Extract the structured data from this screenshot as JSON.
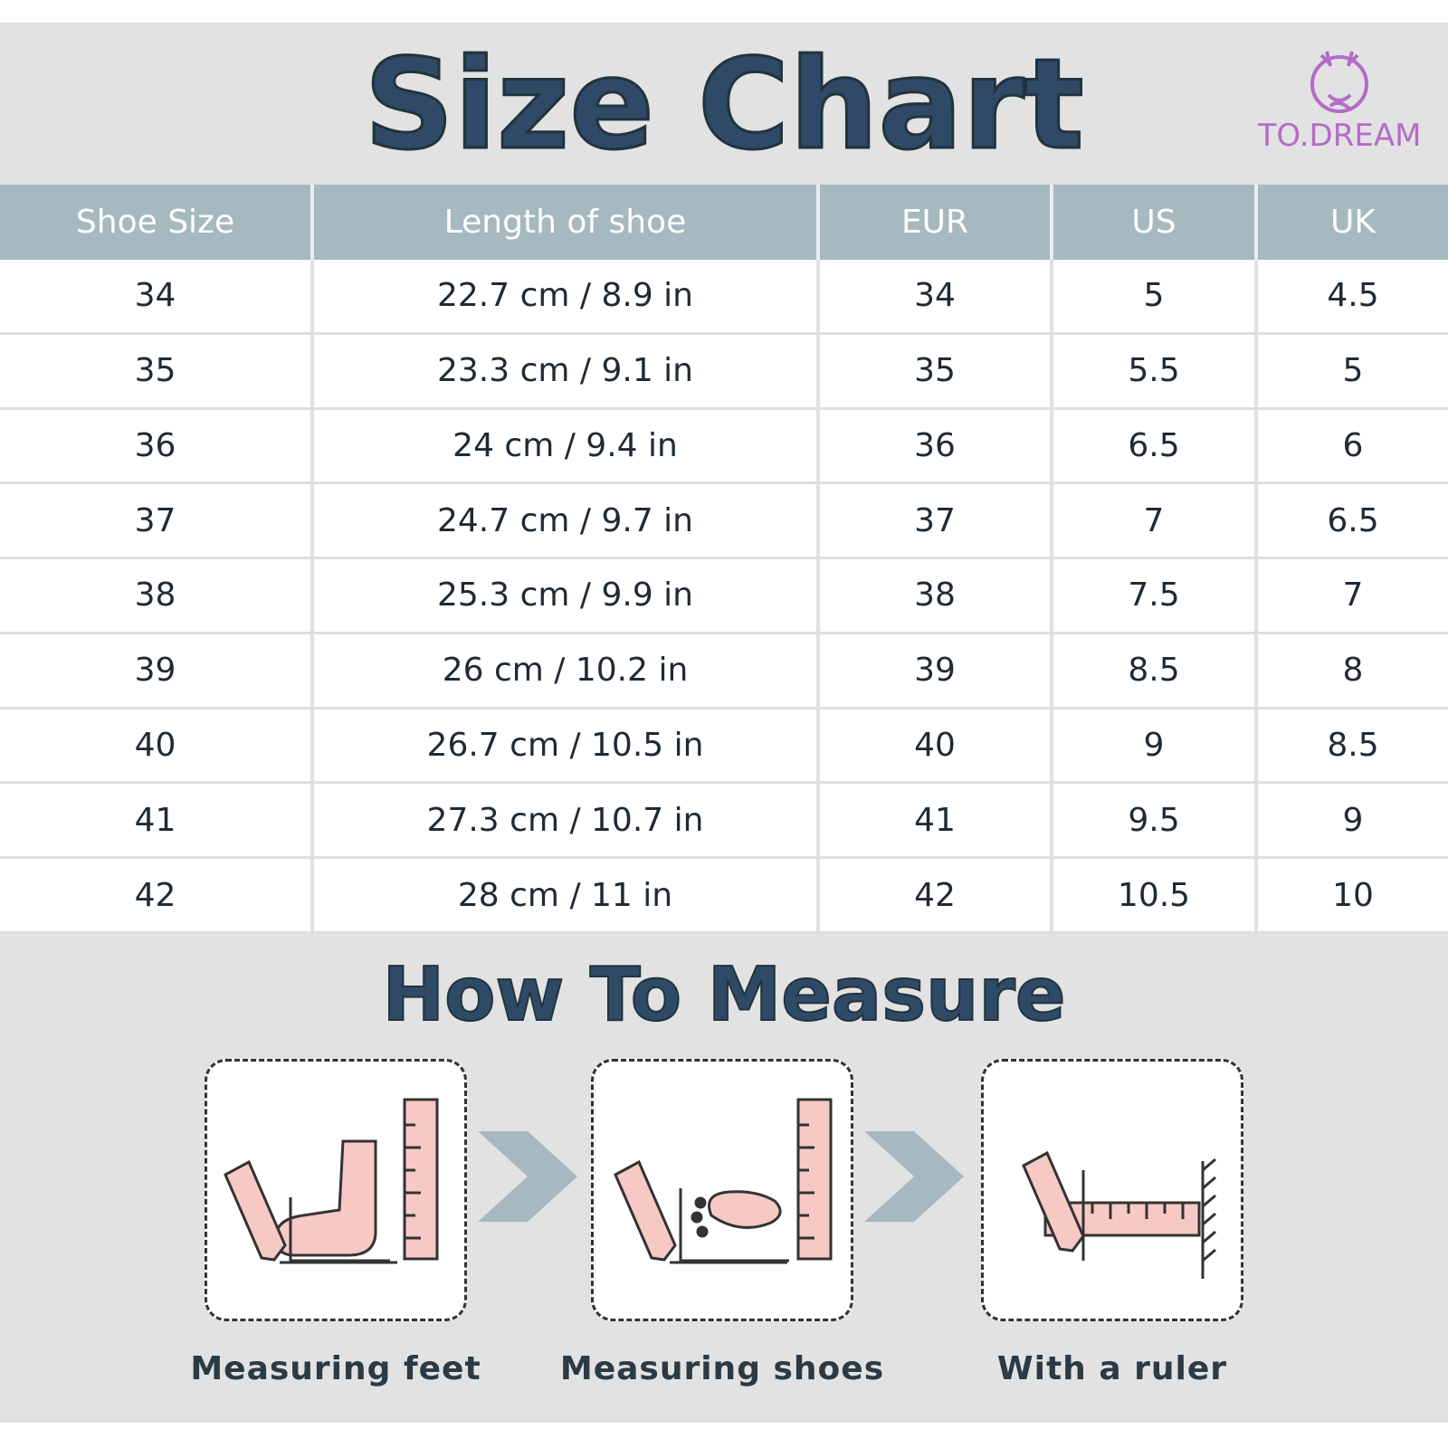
{
  "header": {
    "title": "Size Chart",
    "logo": "TO.DREAM"
  },
  "table": {
    "columns": [
      "Shoe Size",
      "Length of shoe",
      "EUR",
      "US",
      "UK"
    ],
    "rows": [
      [
        "34",
        "22.7 cm / 8.9 in",
        "34",
        "5",
        "4.5"
      ],
      [
        "35",
        "23.3 cm / 9.1 in",
        "35",
        "5.5",
        "5"
      ],
      [
        "36",
        "24 cm / 9.4 in",
        "36",
        "6.5",
        "6"
      ],
      [
        "37",
        "24.7 cm / 9.7 in",
        "37",
        "7",
        "6.5"
      ],
      [
        "38",
        "25.3 cm / 9.9 in",
        "38",
        "7.5",
        "7"
      ],
      [
        "39",
        "26 cm / 10.2 in",
        "39",
        "8.5",
        "8"
      ],
      [
        "40",
        "26.7 cm / 10.5 in",
        "40",
        "9",
        "8.5"
      ],
      [
        "41",
        "27.3 cm / 10.7 in",
        "41",
        "9.5",
        "9"
      ],
      [
        "42",
        "28 cm / 11 in",
        "42",
        "10.5",
        "10"
      ]
    ]
  },
  "measure": {
    "title": "How To Measure",
    "steps": [
      "Measuring feet",
      "Measuring shoes",
      "With a ruler"
    ]
  }
}
